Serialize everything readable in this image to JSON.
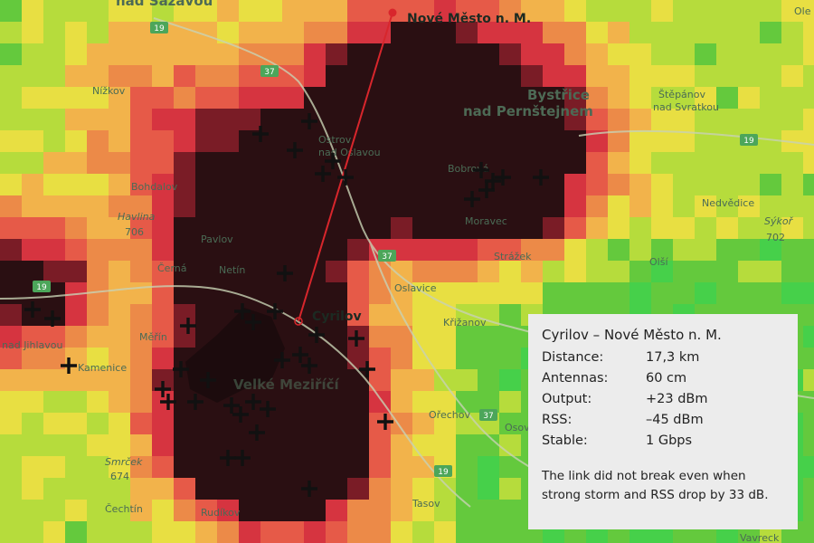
{
  "map": {
    "places": [
      {
        "name": "nad Sázavou"
      },
      {
        "name": "Nížkov"
      },
      {
        "name": "Bohdalov"
      },
      {
        "name": "Havlina"
      },
      {
        "name": "Pavlov"
      },
      {
        "name": "Černá"
      },
      {
        "name": "Netín"
      },
      {
        "name": "Ostrov"
      },
      {
        "name": "nad Oslavou"
      },
      {
        "name": "Bobrová"
      },
      {
        "name": "Moravec"
      },
      {
        "name": "Štěpánov"
      },
      {
        "name": "nad Svratkou"
      },
      {
        "name": "Nedvědice"
      },
      {
        "name": "Sýkoř"
      },
      {
        "name": "Strážek"
      },
      {
        "name": "Olší"
      },
      {
        "name": "Oslavice"
      },
      {
        "name": "Křižanov"
      },
      {
        "name": "Měřín"
      },
      {
        "name": "nad Jihlavou"
      },
      {
        "name": "Kamenice"
      },
      {
        "name": "Ořechov"
      },
      {
        "name": "Osová"
      },
      {
        "name": "Čechtín"
      },
      {
        "name": "Rudíkov"
      },
      {
        "name": "Tasov"
      },
      {
        "name": "Smrček"
      },
      {
        "name": "Ole"
      },
      {
        "name": "Vavreck"
      }
    ],
    "big_places": [
      {
        "name": "Bystřice"
      },
      {
        "name": "nad Pernštejnem"
      },
      {
        "name": "Velké Meziříčí"
      }
    ],
    "elevations": [
      "706",
      "674",
      "702"
    ],
    "road_numbers": [
      "19",
      "37",
      "37",
      "19",
      "37",
      "19",
      "19"
    ],
    "sites": {
      "a": {
        "name": "Cyrilov"
      },
      "b": {
        "name": "Nové Město n. M."
      }
    },
    "link_color": "#d8262c",
    "coverage_palette": [
      "#46d04a",
      "#64c93d",
      "#b6dc3c",
      "#e8df42",
      "#f2b34b",
      "#ec8a48",
      "#e65a48",
      "#d63440",
      "#7a1c26",
      "#2a0f12"
    ]
  },
  "info": {
    "title": "Cyrilov – Nové Město n. M.",
    "rows": [
      {
        "key": "Distance:",
        "value": "17,3 km"
      },
      {
        "key": "Antennas:",
        "value": "60 cm"
      },
      {
        "key": "Output:",
        "value": "+23 dBm"
      },
      {
        "key": "RSS:",
        "value": "–45 dBm"
      },
      {
        "key": "Stable:",
        "value": "1 Gbps"
      }
    ],
    "note_line1": "The link did not break even when",
    "note_line2": "strong storm and RSS drop by 33 dB."
  }
}
